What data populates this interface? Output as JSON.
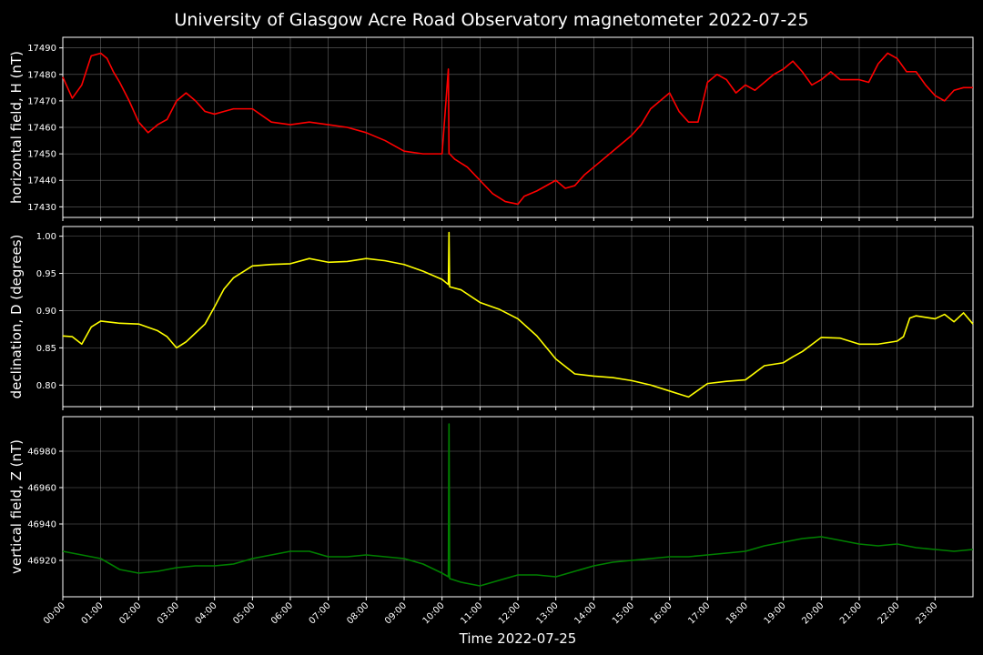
{
  "chart_data": {
    "type": "line",
    "title": "University of Glasgow Acre Road Observatory magnetometer 2022-07-25",
    "xlabel": "Time 2022-07-25",
    "x_ticks": [
      "00:00",
      "01:00",
      "02:00",
      "03:00",
      "04:00",
      "05:00",
      "06:00",
      "07:00",
      "08:00",
      "09:00",
      "10:00",
      "11:00",
      "12:00",
      "13:00",
      "14:00",
      "15:00",
      "16:00",
      "17:00",
      "18:00",
      "19:00",
      "20:00",
      "21:00",
      "22:00",
      "23:00"
    ],
    "xlim": [
      "00:00",
      "24:00"
    ],
    "grid": true,
    "panels": [
      {
        "name": "horizontal",
        "ylabel": "horizontal field, H (nT)",
        "color": "#ff0000",
        "ylim": [
          17426,
          17494
        ],
        "y_ticks": [
          "17430",
          "17440",
          "17450",
          "17460",
          "17470",
          "17480",
          "17490"
        ],
        "x": [
          "00:00",
          "00:15",
          "00:30",
          "00:45",
          "01:00",
          "01:10",
          "01:20",
          "01:30",
          "01:45",
          "02:00",
          "02:15",
          "02:30",
          "02:45",
          "03:00",
          "03:15",
          "03:30",
          "03:45",
          "04:00",
          "04:15",
          "04:30",
          "05:00",
          "05:30",
          "06:00",
          "06:30",
          "07:00",
          "07:30",
          "08:00",
          "08:30",
          "09:00",
          "09:30",
          "10:00",
          "10:10",
          "10:11",
          "10:12",
          "10:20",
          "10:40",
          "11:00",
          "11:20",
          "11:40",
          "12:00",
          "12:10",
          "12:30",
          "13:00",
          "13:15",
          "13:30",
          "13:45",
          "14:00",
          "14:30",
          "15:00",
          "15:15",
          "15:30",
          "15:45",
          "16:00",
          "16:15",
          "16:30",
          "16:45",
          "17:00",
          "17:15",
          "17:30",
          "17:45",
          "18:00",
          "18:15",
          "18:30",
          "18:45",
          "19:00",
          "19:15",
          "19:30",
          "19:45",
          "20:00",
          "20:15",
          "20:30",
          "20:45",
          "21:00",
          "21:15",
          "21:30",
          "21:45",
          "22:00",
          "22:15",
          "22:30",
          "22:45",
          "23:00",
          "23:15",
          "23:30",
          "23:45",
          "24:00"
        ],
        "values": [
          17479,
          17471,
          17476,
          17487,
          17488,
          17486,
          17481,
          17477,
          17470,
          17462,
          17458,
          17461,
          17463,
          17470,
          17473,
          17470,
          17466,
          17465,
          17466,
          17467,
          17467,
          17462,
          17461,
          17462,
          17461,
          17460,
          17458,
          17455,
          17451,
          17450,
          17450,
          17482,
          17450,
          17450,
          17448,
          17445,
          17440,
          17435,
          17432,
          17431,
          17434,
          17436,
          17440,
          17437,
          17438,
          17442,
          17445,
          17451,
          17457,
          17461,
          17467,
          17470,
          17473,
          17466,
          17462,
          17462,
          17477,
          17480,
          17478,
          17473,
          17476,
          17474,
          17477,
          17480,
          17482,
          17485,
          17481,
          17476,
          17478,
          17481,
          17478,
          17478,
          17478,
          17477,
          17484,
          17488,
          17486,
          17481,
          17481,
          17476,
          17472,
          17470,
          17474,
          17475,
          17475
        ]
      },
      {
        "name": "declination",
        "ylabel": "declination, D (degrees)",
        "color": "#ffff00",
        "ylim": [
          0.771,
          1.013
        ],
        "y_ticks": [
          "0.80",
          "0.85",
          "0.90",
          "0.95",
          "1.00"
        ],
        "x": [
          "00:00",
          "00:15",
          "00:30",
          "00:45",
          "01:00",
          "01:30",
          "02:00",
          "02:30",
          "02:45",
          "03:00",
          "03:15",
          "03:30",
          "03:45",
          "04:00",
          "04:15",
          "04:30",
          "05:00",
          "05:30",
          "06:00",
          "06:30",
          "07:00",
          "07:30",
          "08:00",
          "08:30",
          "09:00",
          "09:30",
          "10:00",
          "10:10",
          "10:11",
          "10:12",
          "10:30",
          "11:00",
          "11:30",
          "12:00",
          "12:30",
          "13:00",
          "13:30",
          "14:00",
          "14:30",
          "15:00",
          "15:30",
          "16:00",
          "16:15",
          "16:30",
          "17:00",
          "17:30",
          "18:00",
          "18:30",
          "19:00",
          "19:15",
          "19:30",
          "20:00",
          "20:30",
          "21:00",
          "21:30",
          "22:00",
          "22:10",
          "22:20",
          "22:30",
          "22:45",
          "23:00",
          "23:15",
          "23:30",
          "23:45",
          "24:00"
        ],
        "values": [
          0.866,
          0.865,
          0.855,
          0.878,
          0.886,
          0.883,
          0.882,
          0.873,
          0.865,
          0.85,
          0.858,
          0.87,
          0.882,
          0.905,
          0.929,
          0.944,
          0.96,
          0.962,
          0.963,
          0.97,
          0.965,
          0.966,
          0.97,
          0.967,
          0.962,
          0.953,
          0.942,
          0.935,
          1.005,
          0.932,
          0.928,
          0.911,
          0.902,
          0.889,
          0.866,
          0.835,
          0.815,
          0.812,
          0.81,
          0.806,
          0.8,
          0.792,
          0.788,
          0.784,
          0.802,
          0.805,
          0.807,
          0.826,
          0.83,
          0.838,
          0.845,
          0.864,
          0.863,
          0.855,
          0.855,
          0.859,
          0.865,
          0.89,
          0.893,
          0.891,
          0.889,
          0.895,
          0.885,
          0.897,
          0.882
        ]
      },
      {
        "name": "vertical",
        "ylabel": "vertical field, Z (nT)",
        "color": "#008000",
        "ylim": [
          46900,
          46999
        ],
        "y_ticks": [
          "46920",
          "46940",
          "46960",
          "46980"
        ],
        "x": [
          "00:00",
          "00:30",
          "01:00",
          "01:30",
          "02:00",
          "02:30",
          "03:00",
          "03:30",
          "04:00",
          "04:30",
          "05:00",
          "05:30",
          "06:00",
          "06:30",
          "07:00",
          "07:30",
          "08:00",
          "08:30",
          "09:00",
          "09:30",
          "10:00",
          "10:10",
          "10:11",
          "10:12",
          "10:30",
          "11:00",
          "11:30",
          "12:00",
          "12:30",
          "13:00",
          "13:30",
          "14:00",
          "14:30",
          "15:00",
          "15:30",
          "16:00",
          "16:30",
          "17:00",
          "17:30",
          "18:00",
          "18:30",
          "19:00",
          "19:30",
          "20:00",
          "20:30",
          "21:00",
          "21:30",
          "22:00",
          "22:30",
          "23:00",
          "23:30",
          "24:00"
        ],
        "values": [
          46925,
          46923,
          46921,
          46915,
          46913,
          46914,
          46916,
          46917,
          46917,
          46918,
          46921,
          46923,
          46925,
          46925,
          46922,
          46922,
          46923,
          46922,
          46921,
          46918,
          46913,
          46911,
          46995,
          46910,
          46908,
          46906,
          46909,
          46912,
          46912,
          46911,
          46914,
          46917,
          46919,
          46920,
          46921,
          46922,
          46922,
          46923,
          46924,
          46925,
          46928,
          46930,
          46932,
          46933,
          46931,
          46929,
          46928,
          46929,
          46927,
          46926,
          46925,
          46926
        ]
      }
    ]
  }
}
